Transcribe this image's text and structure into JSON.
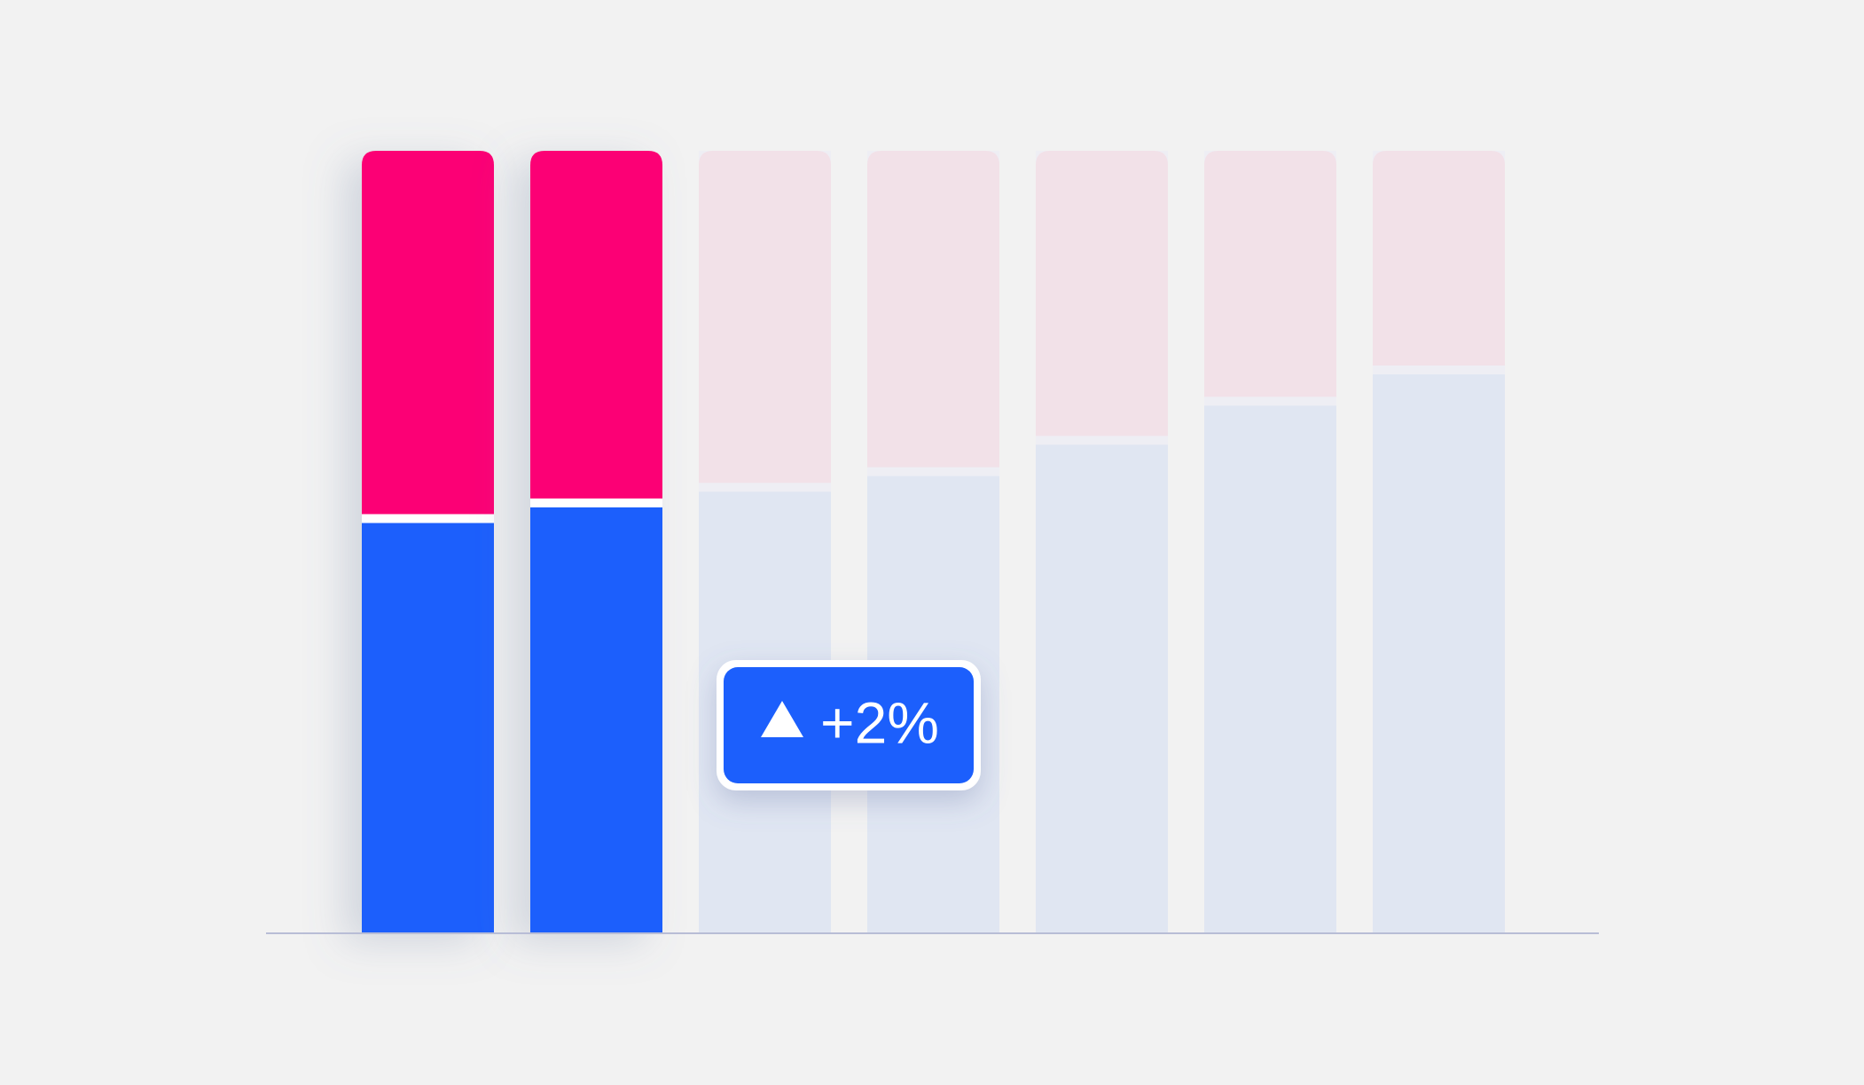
{
  "chart_data": {
    "type": "stacked_bar",
    "categories": [
      null,
      null,
      null,
      null,
      null,
      null,
      null
    ],
    "series": [
      {
        "color": "#1a5ffc",
        "faded_color": "#e0e6f2",
        "values": [
          53,
          55,
          57,
          59,
          63,
          68,
          72
        ]
      },
      {
        "color": "#fc0674",
        "faded_color": "#f2e1e8",
        "values": [
          47,
          45,
          43,
          41,
          37,
          32,
          28
        ]
      }
    ],
    "highlight": [
      true,
      true,
      false,
      false,
      false,
      false,
      false
    ],
    "ylim": [
      0,
      100
    ],
    "annotation": "+2%"
  }
}
